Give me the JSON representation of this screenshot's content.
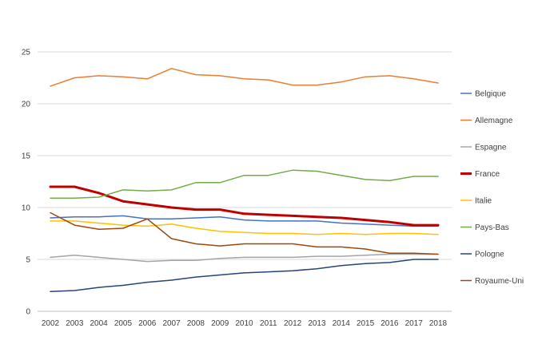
{
  "chart_data": {
    "type": "line",
    "title": "",
    "xlabel": "",
    "ylabel": "",
    "ylim": [
      0,
      25
    ],
    "yticks": [
      0,
      5,
      10,
      15,
      20,
      25
    ],
    "grid": "horizontal",
    "legend_position": "right",
    "x": [
      "2002",
      "2003",
      "2004",
      "2005",
      "2006",
      "2007",
      "2008",
      "2009",
      "2010",
      "2011",
      "2012",
      "2013",
      "2014",
      "2015",
      "2016",
      "2017",
      "2018"
    ],
    "series": [
      {
        "name": "Belgique",
        "color": "#4472C4",
        "width": 1.5,
        "values": [
          9.0,
          9.1,
          9.1,
          9.2,
          8.9,
          8.9,
          9.0,
          9.1,
          8.8,
          8.7,
          8.7,
          8.7,
          8.5,
          8.4,
          8.3,
          8.2,
          8.2
        ]
      },
      {
        "name": "Allemagne",
        "color": "#ED7D31",
        "width": 1.5,
        "values": [
          21.7,
          22.5,
          22.7,
          22.6,
          22.4,
          23.4,
          22.8,
          22.7,
          22.4,
          22.3,
          21.8,
          21.8,
          22.1,
          22.6,
          22.7,
          22.4,
          22.0
        ]
      },
      {
        "name": "Espagne",
        "color": "#A5A5A5",
        "width": 1.5,
        "values": [
          5.2,
          5.4,
          5.2,
          5.0,
          4.8,
          4.9,
          4.9,
          5.1,
          5.2,
          5.2,
          5.2,
          5.3,
          5.3,
          5.4,
          5.5,
          5.5,
          5.5
        ]
      },
      {
        "name": "France",
        "color": "#C00000",
        "width": 3,
        "values": [
          12.0,
          12.0,
          11.4,
          10.6,
          10.3,
          10.0,
          9.8,
          9.8,
          9.4,
          9.3,
          9.2,
          9.1,
          9.0,
          8.8,
          8.6,
          8.3,
          8.3
        ]
      },
      {
        "name": "Italie",
        "color": "#FFC000",
        "width": 1.5,
        "values": [
          8.7,
          8.7,
          8.5,
          8.3,
          8.2,
          8.4,
          8.0,
          7.7,
          7.6,
          7.5,
          7.5,
          7.4,
          7.5,
          7.4,
          7.5,
          7.5,
          7.4
        ]
      },
      {
        "name": "Pays-Bas",
        "color": "#70AD47",
        "width": 1.5,
        "values": [
          10.9,
          10.9,
          11.0,
          11.7,
          11.6,
          11.7,
          12.4,
          12.4,
          13.1,
          13.1,
          13.6,
          13.5,
          13.1,
          12.7,
          12.6,
          13.0,
          13.0
        ]
      },
      {
        "name": "Pologne",
        "color": "#264478",
        "width": 1.5,
        "values": [
          1.9,
          2.0,
          2.3,
          2.5,
          2.8,
          3.0,
          3.3,
          3.5,
          3.7,
          3.8,
          3.9,
          4.1,
          4.4,
          4.6,
          4.7,
          5.0,
          5.0
        ]
      },
      {
        "name": "Royaume-Uni",
        "color": "#9E480E",
        "width": 1.5,
        "values": [
          9.5,
          8.3,
          7.9,
          8.0,
          8.9,
          7.0,
          6.5,
          6.3,
          6.5,
          6.5,
          6.5,
          6.2,
          6.2,
          6.0,
          5.6,
          5.6,
          5.5
        ]
      }
    ]
  }
}
